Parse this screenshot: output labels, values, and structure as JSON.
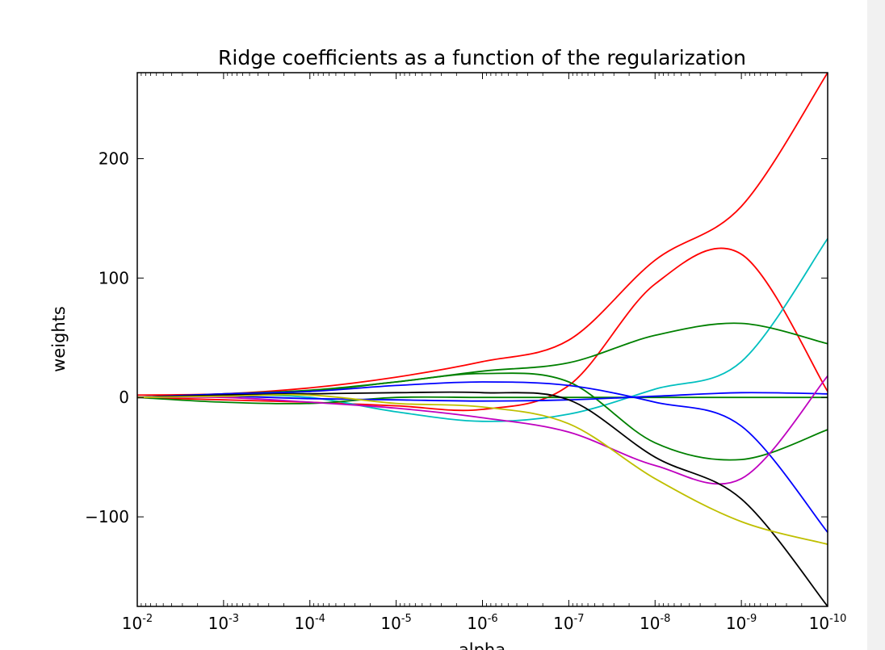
{
  "chart_data": {
    "type": "line",
    "title": "Ridge coefficients as a function of the regularization",
    "xlabel": "alpha",
    "ylabel": "weights",
    "xscale": "log",
    "x_reversed": true,
    "xlim": [
      0.01,
      1e-10
    ],
    "ylim": [
      -175,
      272
    ],
    "grid": false,
    "x_ticks": [
      {
        "label": "10",
        "exp": "-2",
        "value": -2
      },
      {
        "label": "10",
        "exp": "-3",
        "value": -3
      },
      {
        "label": "10",
        "exp": "-4",
        "value": -4
      },
      {
        "label": "10",
        "exp": "-5",
        "value": -5
      },
      {
        "label": "10",
        "exp": "-6",
        "value": -6
      },
      {
        "label": "10",
        "exp": "-7",
        "value": -7
      },
      {
        "label": "10",
        "exp": "-8",
        "value": -8
      },
      {
        "label": "10",
        "exp": "-9",
        "value": -9
      },
      {
        "label": "10",
        "exp": "-10",
        "value": -10
      }
    ],
    "y_ticks": [
      {
        "label": "−100",
        "value": -100
      },
      {
        "label": "0",
        "value": 0
      },
      {
        "label": "100",
        "value": 100
      },
      {
        "label": "200",
        "value": 200
      }
    ],
    "log10_alpha": [
      -2,
      -3,
      -4,
      -5,
      -6,
      -7,
      -8,
      -9,
      -10
    ],
    "series": [
      {
        "name": "red-1",
        "color": "#ff0000",
        "values": [
          2,
          3,
          8,
          17,
          30,
          48,
          115,
          160,
          272
        ]
      },
      {
        "name": "red-2",
        "color": "#ff0000",
        "values": [
          0,
          -2,
          -4,
          -7,
          -10,
          10,
          95,
          120,
          5
        ]
      },
      {
        "name": "cyan",
        "color": "#00bfbf",
        "values": [
          0,
          2,
          0,
          -12,
          -20,
          -14,
          7,
          30,
          133
        ]
      },
      {
        "name": "green-1",
        "color": "#008000",
        "values": [
          0,
          3,
          6,
          13,
          22,
          29,
          52,
          62,
          45
        ]
      },
      {
        "name": "green-2",
        "color": "#008000",
        "values": [
          0,
          2,
          5,
          13,
          20,
          13,
          -38,
          -52,
          -27
        ]
      },
      {
        "name": "green-3",
        "color": "#008000",
        "values": [
          0,
          -4,
          -5,
          0,
          0,
          0,
          0,
          0,
          0
        ]
      },
      {
        "name": "blue-1",
        "color": "#0000ff",
        "values": [
          0,
          1,
          -1,
          -2,
          -3,
          -2,
          1,
          4,
          3
        ]
      },
      {
        "name": "blue-2",
        "color": "#0000ff",
        "values": [
          0,
          3,
          5,
          10,
          13,
          10,
          -4,
          -24,
          -113
        ]
      },
      {
        "name": "magenta",
        "color": "#bf00bf",
        "values": [
          0,
          0,
          -4,
          -9,
          -17,
          -29,
          -57,
          -68,
          18
        ]
      },
      {
        "name": "black",
        "color": "#000000",
        "values": [
          0,
          2,
          3,
          4,
          4,
          -2,
          -50,
          -85,
          -175
        ]
      },
      {
        "name": "yellow",
        "color": "#bfbf00",
        "values": [
          0,
          1,
          2,
          -5,
          -8,
          -22,
          -68,
          -104,
          -123
        ]
      }
    ]
  }
}
